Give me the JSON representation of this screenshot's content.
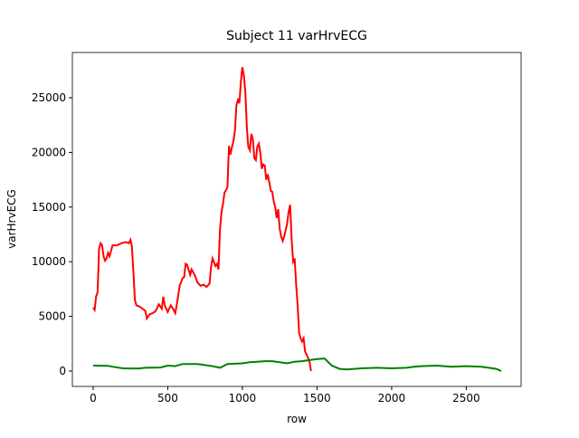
{
  "chart_data": {
    "type": "line",
    "title": "Subject 11 varHrvECG",
    "x_label": "row",
    "y_label": "varHrvECG",
    "xlim": [
      -139,
      2867
    ],
    "ylim": [
      -1407,
      29140
    ],
    "xticks": [
      0,
      500,
      1000,
      1500,
      2000,
      2500
    ],
    "yticks": [
      0,
      5000,
      10000,
      15000,
      20000,
      25000
    ],
    "series": [
      {
        "color": "#ff0000",
        "x": [
          0,
          10,
          20,
          30,
          40,
          50,
          60,
          70,
          80,
          90,
          100,
          110,
          130,
          160,
          190,
          220,
          240,
          250,
          260,
          270,
          280,
          290,
          310,
          330,
          350,
          360,
          380,
          400,
          420,
          440,
          460,
          470,
          480,
          500,
          520,
          540,
          550,
          560,
          580,
          600,
          610,
          620,
          630,
          650,
          660,
          680,
          700,
          720,
          740,
          760,
          780,
          790,
          800,
          820,
          830,
          840,
          850,
          860,
          870,
          880,
          900,
          910,
          920,
          930,
          940,
          950,
          960,
          970,
          980,
          990,
          1000,
          1010,
          1020,
          1030,
          1040,
          1050,
          1060,
          1070,
          1080,
          1090,
          1100,
          1110,
          1120,
          1130,
          1140,
          1150,
          1160,
          1170,
          1180,
          1190,
          1200,
          1210,
          1220,
          1230,
          1240,
          1250,
          1260,
          1270,
          1280,
          1290,
          1300,
          1310,
          1320,
          1330,
          1340,
          1350,
          1360,
          1370,
          1380,
          1390,
          1400,
          1410,
          1420,
          1430,
          1440,
          1450,
          1460
        ],
        "values": [
          5800,
          5600,
          6800,
          7200,
          11200,
          11700,
          11500,
          10500,
          10100,
          10300,
          10800,
          10500,
          11500,
          11500,
          11700,
          11800,
          11700,
          12000,
          11400,
          9000,
          6500,
          6000,
          5900,
          5700,
          5500,
          4800,
          5200,
          5300,
          5500,
          6100,
          5700,
          6800,
          6000,
          5400,
          6000,
          5600,
          5300,
          6000,
          7800,
          8500,
          8600,
          9800,
          9700,
          8800,
          9300,
          8800,
          8100,
          7800,
          7900,
          7700,
          8000,
          9500,
          10300,
          9600,
          9800,
          9300,
          13000,
          14500,
          15300,
          16300,
          16800,
          20600,
          19800,
          20500,
          21000,
          22000,
          24300,
          24800,
          24500,
          26500,
          27800,
          27000,
          25500,
          22200,
          20500,
          20200,
          21700,
          21200,
          19500,
          19300,
          20500,
          20800,
          20000,
          18500,
          18900,
          18800,
          17500,
          18000,
          17300,
          16500,
          16400,
          15500,
          15000,
          14000,
          14800,
          13000,
          12300,
          11900,
          12300,
          12900,
          13500,
          14600,
          15200,
          12000,
          10000,
          10300,
          8000,
          6000,
          3500,
          3000,
          2700,
          3000,
          1800,
          1500,
          1200,
          800,
          0
        ]
      },
      {
        "color": "#008000",
        "x": [
          0,
          100,
          150,
          200,
          300,
          350,
          450,
          500,
          550,
          600,
          700,
          800,
          850,
          900,
          1000,
          1050,
          1100,
          1150,
          1200,
          1250,
          1300,
          1350,
          1400,
          1450,
          1500,
          1550,
          1600,
          1650,
          1700,
          1800,
          1900,
          2000,
          2100,
          2150,
          2200,
          2300,
          2400,
          2500,
          2600,
          2650,
          2700,
          2733
        ],
        "values": [
          500,
          480,
          350,
          250,
          230,
          300,
          320,
          500,
          450,
          650,
          650,
          450,
          300,
          650,
          700,
          800,
          850,
          900,
          900,
          800,
          700,
          850,
          900,
          1000,
          1100,
          1150,
          500,
          200,
          150,
          250,
          300,
          250,
          300,
          400,
          450,
          500,
          400,
          450,
          400,
          300,
          200,
          0
        ]
      }
    ]
  }
}
